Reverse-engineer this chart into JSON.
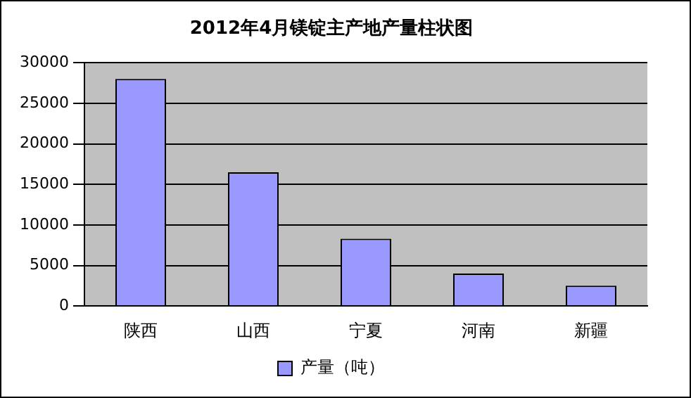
{
  "chart_data": {
    "type": "bar",
    "title": "2012年4月镁锭主产地产量柱状图",
    "categories": [
      "陕西",
      "山西",
      "宁夏",
      "河南",
      "新疆"
    ],
    "series": [
      {
        "name": "产量（吨）",
        "color": "#9999ff",
        "values": [
          28000,
          16500,
          8300,
          4000,
          2500
        ]
      }
    ],
    "ylim": [
      0,
      30000
    ],
    "yticks": [
      0,
      5000,
      10000,
      15000,
      20000,
      25000,
      30000
    ],
    "grid": "y",
    "legend": "bottom"
  }
}
